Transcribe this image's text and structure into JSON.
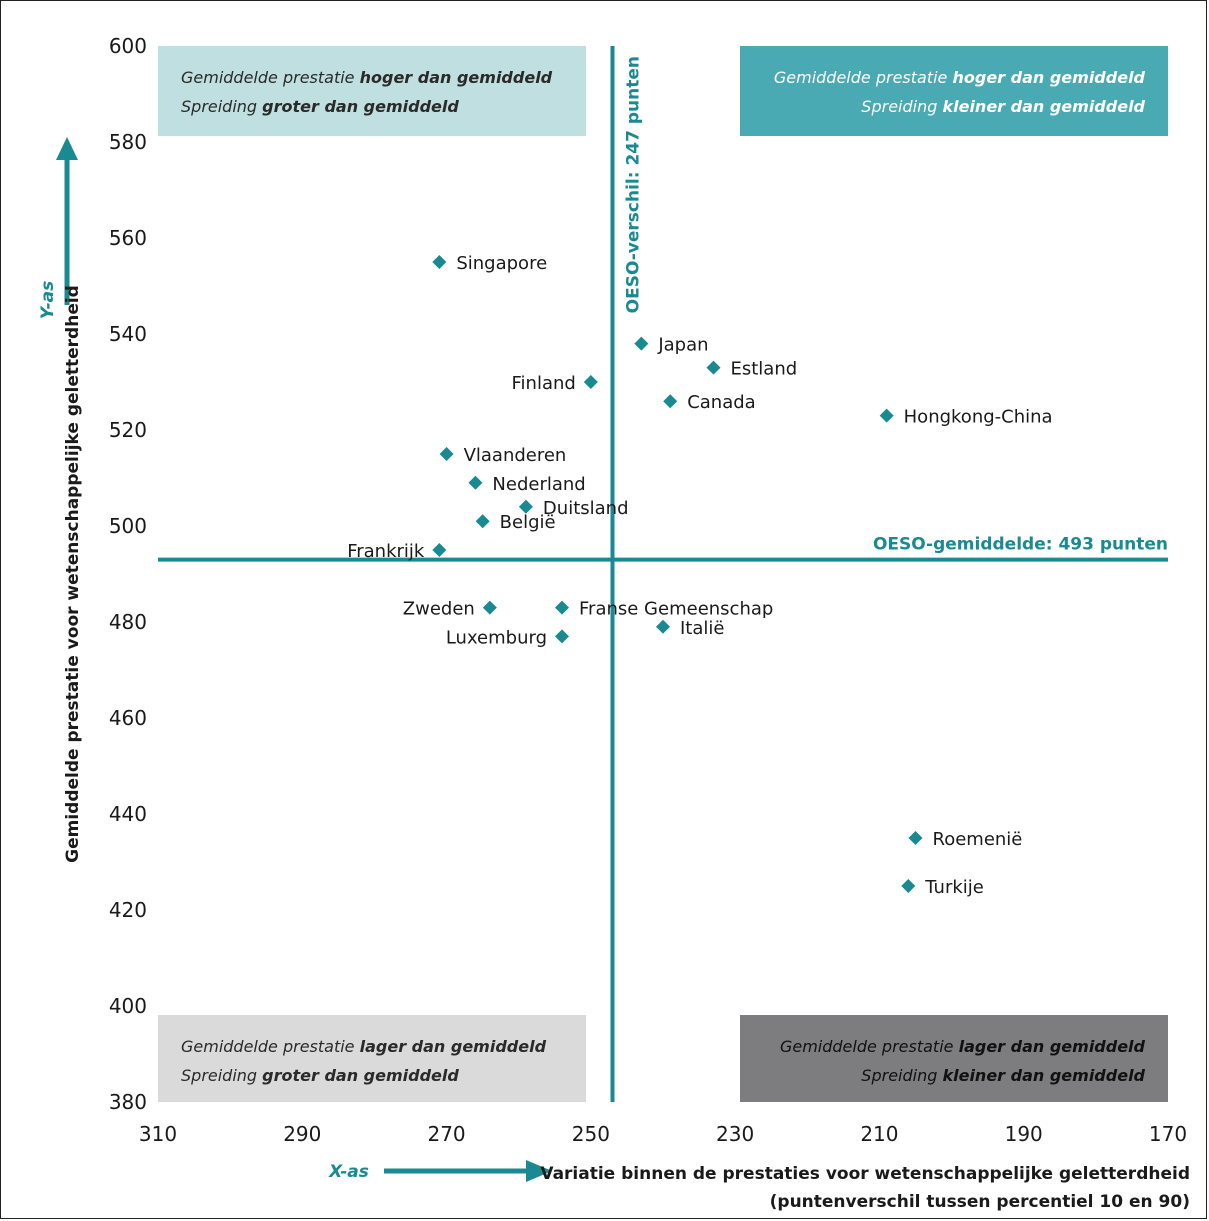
{
  "chart_data": {
    "type": "scatter",
    "xlabel_line1": "Variatie binnen de prestaties voor wetenschappelijke geletterdheid",
    "xlabel_line2": "(puntenverschil tussen percentiel 10 en 90)",
    "ylabel": "Gemiddelde prestatie voor wetenschappelijke geletterdheid",
    "x_axis_name": "X-as",
    "y_axis_name": "Y-as",
    "xlim": [
      310,
      170
    ],
    "ylim": [
      380,
      600
    ],
    "x_ticks": [
      310,
      290,
      270,
      250,
      230,
      210,
      190,
      170
    ],
    "y_ticks": [
      380,
      400,
      420,
      440,
      460,
      480,
      500,
      520,
      540,
      560,
      580,
      600
    ],
    "reference_lines": {
      "x": {
        "value": 247,
        "label": "OESO-verschil: 247 punten"
      },
      "y": {
        "value": 493,
        "label": "OESO-gemiddelde: 493 punten"
      }
    },
    "quadrants": {
      "top_left": {
        "line1_plain": "Gemiddelde prestatie ",
        "line1_bold": "hoger dan gemiddeld",
        "line2_plain": "Spreiding ",
        "line2_bold": "groter dan gemiddeld",
        "color": "#bfdfe1"
      },
      "top_right": {
        "line1_plain": "Gemiddelde prestatie ",
        "line1_bold": "hoger dan gemiddeld",
        "line2_plain": "Spreiding ",
        "line2_bold": "kleiner dan gemiddeld",
        "color": "#4aaab3"
      },
      "bottom_left": {
        "line1_plain": "Gemiddelde prestatie ",
        "line1_bold": "lager dan gemiddeld",
        "line2_plain": "Spreiding ",
        "line2_bold": "groter dan gemiddeld",
        "color": "#dadada"
      },
      "bottom_right": {
        "line1_plain": "Gemiddelde prestatie ",
        "line1_bold": "lager dan gemiddeld",
        "line2_plain": "Spreiding ",
        "line2_bold": "kleiner dan gemiddeld",
        "color": "#7d7d7f"
      }
    },
    "points": [
      {
        "label": "Singapore",
        "x": 271,
        "y": 555,
        "side": "right"
      },
      {
        "label": "Japan",
        "x": 243,
        "y": 538,
        "side": "right"
      },
      {
        "label": "Estland",
        "x": 233,
        "y": 533,
        "side": "right"
      },
      {
        "label": "Finland",
        "x": 250,
        "y": 530,
        "side": "left"
      },
      {
        "label": "Canada",
        "x": 239,
        "y": 526,
        "side": "right"
      },
      {
        "label": "Hongkong-China",
        "x": 209,
        "y": 523,
        "side": "right"
      },
      {
        "label": "Vlaanderen",
        "x": 270,
        "y": 515,
        "side": "right"
      },
      {
        "label": "Nederland",
        "x": 266,
        "y": 509,
        "side": "right"
      },
      {
        "label": "Duitsland",
        "x": 259,
        "y": 504,
        "side": "right"
      },
      {
        "label": "België",
        "x": 265,
        "y": 501,
        "side": "right"
      },
      {
        "label": "Frankrijk",
        "x": 271,
        "y": 495,
        "side": "left"
      },
      {
        "label": "Zweden",
        "x": 264,
        "y": 483,
        "side": "left"
      },
      {
        "label": "Franse Gemeenschap",
        "x": 254,
        "y": 483,
        "side": "right"
      },
      {
        "label": "Italië",
        "x": 240,
        "y": 479,
        "side": "right"
      },
      {
        "label": "Luxemburg",
        "x": 254,
        "y": 477,
        "side": "left"
      },
      {
        "label": "Roemenië",
        "x": 205,
        "y": 435,
        "side": "right"
      },
      {
        "label": "Turkije",
        "x": 206,
        "y": 425,
        "side": "right"
      }
    ],
    "marker_color": "#1a8a92",
    "grid": false
  }
}
